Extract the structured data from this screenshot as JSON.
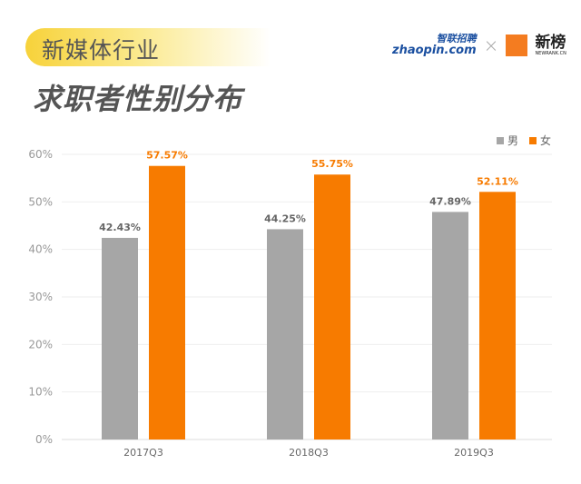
{
  "header": {
    "industry": "新媒体行业",
    "title": "求职者性别分布"
  },
  "logos": {
    "zhaopin_cn": "智联招聘",
    "zhaopin_en": "zhaopin.com",
    "separator": "×",
    "newrank_cn": "新榜",
    "newrank_en": "NEWRANK.CN"
  },
  "colors": {
    "male": "#a6a6a6",
    "female": "#f77b00",
    "banner": "#f7d23a"
  },
  "chart_data": {
    "type": "bar",
    "categories": [
      "2017Q3",
      "2018Q3",
      "2019Q3"
    ],
    "series": [
      {
        "name": "男",
        "values": [
          42.43,
          44.25,
          47.89
        ],
        "labels": [
          "42.43%",
          "44.25%",
          "47.89%"
        ]
      },
      {
        "name": "女",
        "values": [
          57.57,
          55.75,
          52.11
        ],
        "labels": [
          "57.57%",
          "55.75%",
          "52.11%"
        ]
      }
    ],
    "yticks": [
      "0%",
      "10%",
      "20%",
      "30%",
      "40%",
      "50%",
      "60%"
    ],
    "ylim": [
      0,
      60
    ],
    "grid": true,
    "legend": "top-right"
  }
}
